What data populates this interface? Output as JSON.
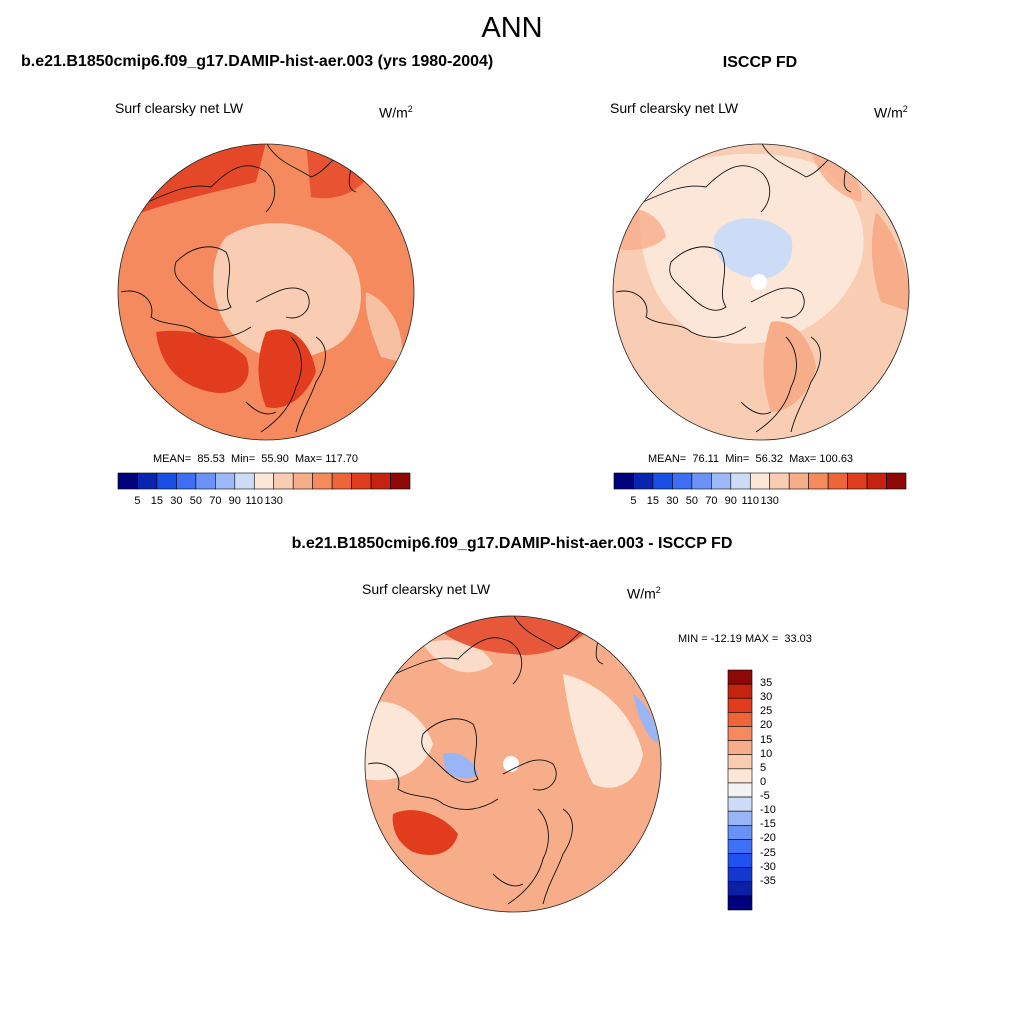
{
  "page": {
    "main_title": "ANN",
    "case_title": "b.e21.B1850cmip6.f09_g17.DAMIP-hist-aer.003 (yrs 1980-2004)",
    "obs_title": "ISCCP FD",
    "diff_title": "b.e21.B1850cmip6.f09_g17.DAMIP-hist-aer.003 - ISCCP FD"
  },
  "panels": {
    "model": {
      "variable": "Surf clearsky net LW",
      "units_base": "W/m",
      "units_exp": "2",
      "mean_label": "MEAN=",
      "mean": "85.53",
      "min_label": "Min=",
      "min": "55.90",
      "max_label": "Max=",
      "max": "117.70"
    },
    "obs": {
      "variable": "Surf clearsky net LW",
      "units_base": "W/m",
      "units_exp": "2",
      "mean_label": "MEAN=",
      "mean": "76.11",
      "min_label": "Min=",
      "min": "56.32",
      "max_label": "Max=",
      "max": "100.63"
    },
    "diff": {
      "variable": "Surf clearsky net LW",
      "units_base": "W/m",
      "units_exp": "2",
      "minmax_text": "MIN = -12.19 MAX =  33.03"
    }
  },
  "colorbar_abs": {
    "colors": [
      "#00007f",
      "#0a24b2",
      "#1a4ee6",
      "#3d6ef5",
      "#6b93f7",
      "#9cb8f5",
      "#cddcf6",
      "#fbe6d8",
      "#f9cdb3",
      "#f7ad8a",
      "#f58a5e",
      "#f0643a",
      "#e23c1f",
      "#c4240e",
      "#8f0808"
    ],
    "ticks": [
      "5",
      "15",
      "30",
      "50",
      "70",
      "90",
      "110",
      "130"
    ]
  },
  "colorbar_diff": {
    "colors": [
      "#00007f",
      "#0c20a6",
      "#1338cf",
      "#1f52f0",
      "#3f70f5",
      "#6891f6",
      "#9ab5f5",
      "#cddcf6",
      "#f2f2f2",
      "#fbe6d8",
      "#f9cdb3",
      "#f7ad8a",
      "#f58a5e",
      "#f0643a",
      "#e23c1f",
      "#c4240e",
      "#8f0808"
    ],
    "ticks": [
      "35",
      "30",
      "25",
      "20",
      "15",
      "10",
      "5",
      "0",
      "-5",
      "-10",
      "-15",
      "-20",
      "-25",
      "-30",
      "-35"
    ]
  },
  "map_colors": {
    "model_base": "#f58a5e",
    "model_center": "#f9cdb3",
    "model_hot": "#e23c1f",
    "obs_base": "#f9cdb3",
    "obs_light": "#fbe6d8",
    "obs_cold": "#cddcf6",
    "obs_warm": "#f7ad8a",
    "diff_base": "#f7ad8a",
    "diff_light": "#fbe6d8",
    "diff_hot": "#e23c1f",
    "diff_cold": "#9ab5f5",
    "land_line": "#111111",
    "pole": "#ffffff"
  }
}
